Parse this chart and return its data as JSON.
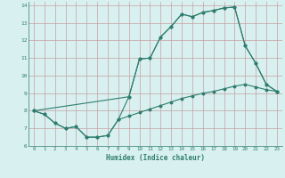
{
  "xlabel": "Humidex (Indice chaleur)",
  "xlim": [
    -0.5,
    23.5
  ],
  "ylim": [
    6,
    14.2
  ],
  "xticks": [
    0,
    1,
    2,
    3,
    4,
    5,
    6,
    7,
    8,
    9,
    10,
    11,
    12,
    13,
    14,
    15,
    16,
    17,
    18,
    19,
    20,
    21,
    22,
    23
  ],
  "yticks": [
    6,
    7,
    8,
    9,
    10,
    11,
    12,
    13,
    14
  ],
  "line_color": "#2e7d6e",
  "bg_color": "#d8f0f0",
  "grid_color": "#c8a0a0",
  "line1_x": [
    0,
    1,
    2,
    3,
    4,
    5,
    6,
    7,
    8,
    9,
    10,
    11,
    12,
    13,
    14,
    15,
    16,
    17,
    18,
    19,
    20,
    21,
    22,
    23
  ],
  "line1_y": [
    8.0,
    7.8,
    7.3,
    7.0,
    7.1,
    6.5,
    6.5,
    6.6,
    7.5,
    7.7,
    7.9,
    8.1,
    8.3,
    8.5,
    8.7,
    8.85,
    9.0,
    9.1,
    9.25,
    9.4,
    9.5,
    9.35,
    9.2,
    9.1
  ],
  "line2_x": [
    0,
    1,
    2,
    3,
    4,
    5,
    6,
    7,
    8,
    9,
    10,
    11,
    12,
    13,
    14,
    15,
    16,
    17,
    18,
    19,
    20,
    21,
    22,
    23
  ],
  "line2_y": [
    8.0,
    7.8,
    7.3,
    7.0,
    7.1,
    6.5,
    6.5,
    6.6,
    7.5,
    8.8,
    10.95,
    11.0,
    12.2,
    12.8,
    13.5,
    13.35,
    13.6,
    13.7,
    13.85,
    13.9,
    11.7,
    10.7,
    9.5,
    9.1
  ],
  "line3_x": [
    0,
    9,
    10,
    11,
    12,
    13,
    14,
    15,
    16,
    17,
    18,
    19,
    20,
    21,
    22,
    23
  ],
  "line3_y": [
    8.0,
    8.8,
    10.95,
    11.0,
    12.2,
    12.8,
    13.5,
    13.35,
    13.6,
    13.7,
    13.85,
    13.9,
    11.7,
    10.7,
    9.5,
    9.1
  ]
}
